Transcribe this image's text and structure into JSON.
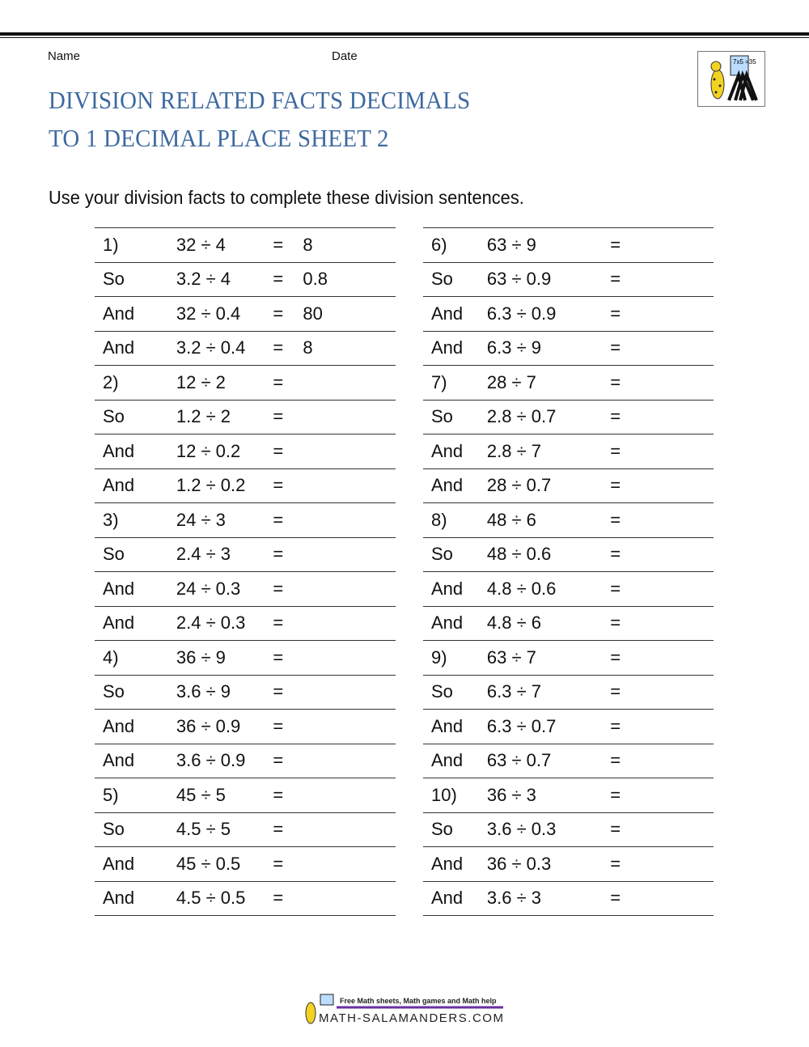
{
  "header": {
    "name_label": "Name",
    "date_label": "Date",
    "title_line1": "DIVISION RELATED FACTS DECIMALS",
    "title_line2": "TO 1 DECIMAL PLACE SHEET 2",
    "instructions": "Use your division facts to complete these division sentences.",
    "logo_text": "7x5 =35"
  },
  "left_rows": [
    [
      "1)",
      "32 ÷ 4",
      "=",
      "8"
    ],
    [
      "So",
      "3.2 ÷ 4",
      "=",
      "0.8"
    ],
    [
      "And",
      "32 ÷ 0.4",
      "=",
      "80"
    ],
    [
      "And",
      "3.2 ÷ 0.4",
      "=",
      "8"
    ],
    [
      "2)",
      "12 ÷ 2",
      "=",
      ""
    ],
    [
      "So",
      "1.2 ÷ 2",
      "=",
      ""
    ],
    [
      "And",
      "12 ÷ 0.2",
      "=",
      ""
    ],
    [
      "And",
      "1.2 ÷ 0.2",
      "=",
      ""
    ],
    [
      "3)",
      "24 ÷ 3",
      "=",
      ""
    ],
    [
      "So",
      "2.4 ÷ 3",
      "=",
      ""
    ],
    [
      "And",
      "24 ÷ 0.3",
      "=",
      ""
    ],
    [
      "And",
      "2.4 ÷ 0.3",
      "=",
      ""
    ],
    [
      "4)",
      "36 ÷ 9",
      "=",
      ""
    ],
    [
      "So",
      "3.6 ÷ 9",
      "=",
      ""
    ],
    [
      "And",
      "36 ÷ 0.9",
      "=",
      ""
    ],
    [
      "And",
      "3.6 ÷ 0.9",
      "=",
      ""
    ],
    [
      "5)",
      "45 ÷ 5",
      "=",
      ""
    ],
    [
      "So",
      "4.5 ÷ 5",
      "=",
      ""
    ],
    [
      "And",
      "45 ÷ 0.5",
      "=",
      ""
    ],
    [
      "And",
      "4.5 ÷ 0.5",
      "=",
      ""
    ]
  ],
  "right_rows": [
    [
      "6)",
      "63 ÷ 9",
      "=",
      ""
    ],
    [
      "So",
      "63 ÷ 0.9",
      "=",
      ""
    ],
    [
      "And",
      "6.3 ÷ 0.9",
      "=",
      ""
    ],
    [
      "And",
      "6.3 ÷ 9",
      "=",
      ""
    ],
    [
      "7)",
      "28 ÷ 7",
      "=",
      ""
    ],
    [
      "So",
      "2.8 ÷ 0.7",
      "=",
      ""
    ],
    [
      "And",
      "2.8 ÷ 7",
      "=",
      ""
    ],
    [
      "And",
      "28 ÷ 0.7",
      "=",
      ""
    ],
    [
      "8)",
      "48 ÷ 6",
      "=",
      ""
    ],
    [
      "So",
      "48 ÷ 0.6",
      "=",
      ""
    ],
    [
      "And",
      "4.8 ÷ 0.6",
      "=",
      ""
    ],
    [
      "And",
      "4.8 ÷ 6",
      "=",
      ""
    ],
    [
      "9)",
      "63 ÷ 7",
      "=",
      ""
    ],
    [
      "So",
      "6.3 ÷ 7",
      "=",
      ""
    ],
    [
      "And",
      "6.3 ÷ 0.7",
      "=",
      ""
    ],
    [
      "And",
      "63 ÷ 0.7",
      "=",
      ""
    ],
    [
      "10)",
      "36 ÷ 3",
      "=",
      ""
    ],
    [
      "So",
      "3.6 ÷ 0.3",
      "=",
      ""
    ],
    [
      "And",
      "36 ÷ 0.3",
      "=",
      ""
    ],
    [
      "And",
      "3.6 ÷ 3",
      "=",
      ""
    ]
  ],
  "footer": {
    "tagline": "Free Math sheets, Math games and Math help",
    "site": "MATH-SALAMANDERS.COM"
  }
}
